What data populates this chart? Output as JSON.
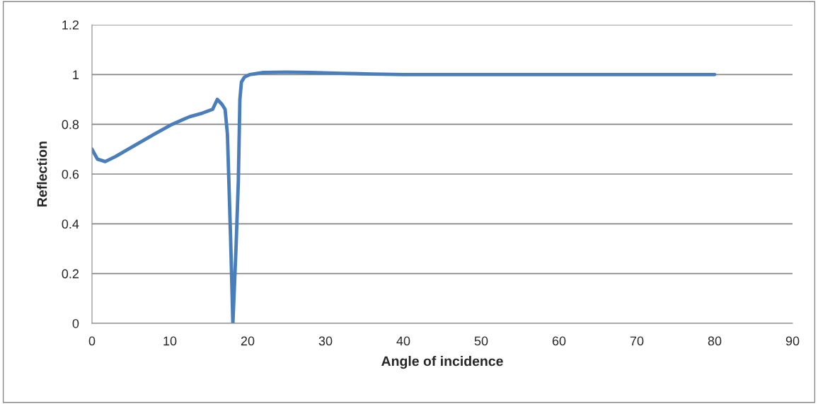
{
  "chart_data": {
    "type": "line",
    "xlabel": "Angle of incidence",
    "ylabel": "Reflection",
    "x": [
      0,
      0.7,
      1.7,
      3,
      5.2,
      8,
      10.3,
      12.5,
      14.2,
      15.5,
      16.1,
      16.7,
      17.1,
      17.4,
      17.8,
      18.1,
      18.5,
      18.8,
      19.0,
      19.2,
      19.6,
      20.3,
      22,
      25,
      28,
      32,
      36,
      40,
      50,
      60,
      70,
      80
    ],
    "series": [
      {
        "color": "#4a7ebb",
        "values": [
          0.7,
          0.66,
          0.65,
          0.67,
          0.71,
          0.76,
          0.8,
          0.83,
          0.845,
          0.86,
          0.9,
          0.88,
          0.86,
          0.76,
          0.35,
          0.0,
          0.3,
          0.57,
          0.9,
          0.97,
          0.99,
          1.0,
          1.008,
          1.01,
          1.008,
          1.005,
          1.002,
          1.0,
          1.0,
          1.0,
          1.0,
          1.0
        ]
      }
    ],
    "xlim": [
      0,
      90
    ],
    "xticks": [
      0,
      10,
      20,
      30,
      40,
      50,
      60,
      70,
      80,
      90
    ],
    "ylim": [
      0,
      1.2
    ],
    "yticks": [
      0,
      {
        "value": 0.2,
        "label": "0.2"
      },
      {
        "value": 0.4,
        "label": "0.4"
      },
      {
        "value": 0.6,
        "label": "0.6"
      },
      {
        "value": 0.8,
        "label": "0.8"
      },
      1,
      {
        "value": 1.2,
        "label": "1.2"
      }
    ],
    "grid": "y",
    "marker": "none",
    "line_style": "solid"
  }
}
